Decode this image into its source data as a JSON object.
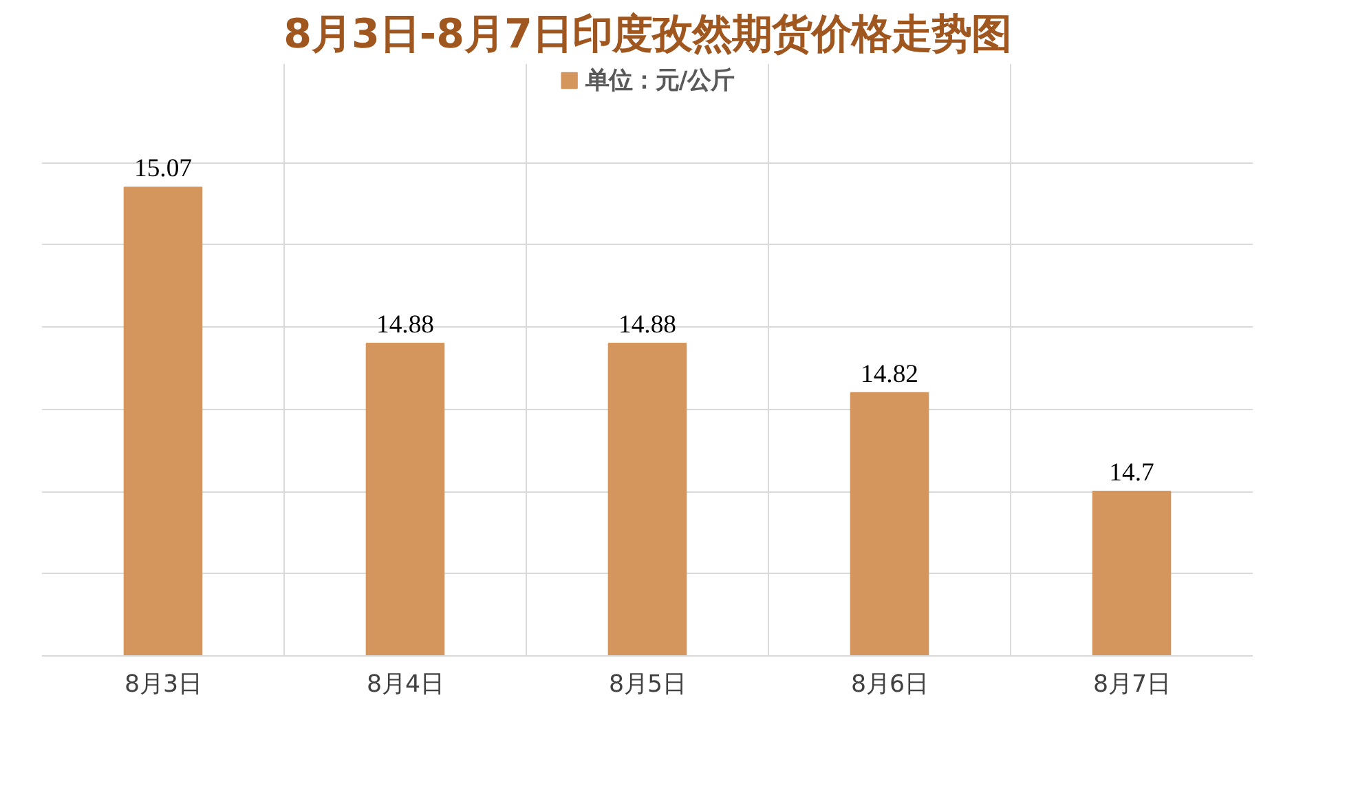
{
  "chart_data": {
    "type": "bar",
    "title": "8月3日-8月7日印度孜然期货价格走势图",
    "categories": [
      "8月3日",
      "8月4日",
      "8月5日",
      "8月6日",
      "8月7日"
    ],
    "series": [
      {
        "name": "单位：元/公斤",
        "color": "#d4965c",
        "values": [
          15.07,
          14.88,
          14.88,
          14.82,
          14.7
        ]
      }
    ],
    "ylim": [
      14.5,
      15.1
    ],
    "yticks": [
      {
        "value": 14.5,
        "label": null
      },
      {
        "value": 14.6,
        "label": null
      },
      {
        "value": 14.7,
        "label": null
      },
      {
        "value": 14.8,
        "label": null
      },
      {
        "value": 14.9,
        "label": null
      },
      {
        "value": 15.0,
        "label": null
      },
      {
        "value": 15.1,
        "label": null
      }
    ],
    "tick_labels": "x",
    "grid": true,
    "legend": "top",
    "data_labels": true
  }
}
